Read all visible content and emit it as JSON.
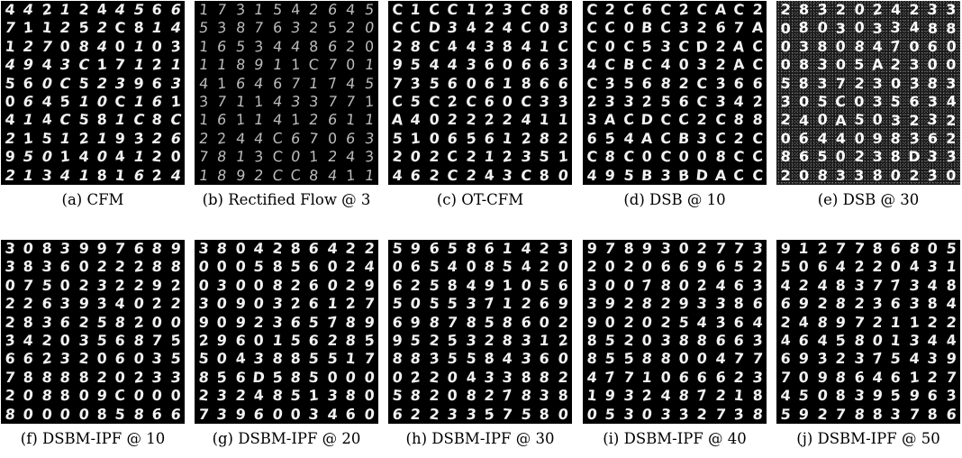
{
  "panels": [
    {
      "caption": "(a) CFM",
      "noisy": false,
      "digits": [
        "4",
        "4",
        "2",
        "1",
        "2",
        "4",
        "4",
        "5",
        "6",
        "6",
        "7",
        "1",
        "1",
        "2",
        "5",
        "2",
        "C",
        "8",
        "1",
        "4",
        "1",
        "2",
        "7",
        "0",
        "8",
        "4",
        "0",
        "1",
        "0",
        "3",
        "4",
        "9",
        "4",
        "3",
        "C",
        "1",
        "7",
        "1",
        "2",
        "1",
        "5",
        "6",
        "0",
        "C",
        "5",
        "2",
        "3",
        "9",
        "6",
        "3",
        "0",
        "6",
        "4",
        "5",
        "1",
        "0",
        "C",
        "1",
        "6",
        "1",
        "4",
        "1",
        "4",
        "C",
        "5",
        "8",
        "1",
        "C",
        "8",
        "C",
        "2",
        "1",
        "5",
        "1",
        "2",
        "1",
        "9",
        "3",
        "2",
        "6",
        "9",
        "5",
        "0",
        "1",
        "4",
        "0",
        "4",
        "1",
        "2",
        "0",
        "2",
        "1",
        "3",
        "4",
        "1",
        "8",
        "1",
        "6",
        "2",
        "4"
      ]
    },
    {
      "caption": "(b) Rectified Flow @ 3",
      "noisy": false,
      "digits": [
        "1",
        "7",
        "3",
        "1",
        "5",
        "4",
        "2",
        "6",
        "4",
        "5",
        "5",
        "3",
        "8",
        "7",
        "6",
        "3",
        "2",
        "5",
        "2",
        "0",
        "1",
        "6",
        "5",
        "3",
        "4",
        "4",
        "8",
        "6",
        "2",
        "0",
        "1",
        "1",
        "8",
        "9",
        "1",
        "1",
        "C",
        "7",
        "0",
        "1",
        "4",
        "1",
        "6",
        "4",
        "6",
        "7",
        "1",
        "7",
        "4",
        "5",
        "3",
        "7",
        "1",
        "1",
        "4",
        "3",
        "3",
        "7",
        "7",
        "1",
        "1",
        "6",
        "1",
        "1",
        "4",
        "1",
        "2",
        "6",
        "1",
        "1",
        "2",
        "2",
        "4",
        "4",
        "C",
        "6",
        "7",
        "0",
        "6",
        "3",
        "7",
        "8",
        "1",
        "3",
        "C",
        "0",
        "1",
        "2",
        "4",
        "3",
        "1",
        "8",
        "9",
        "2",
        "C",
        "C",
        "8",
        "4",
        "1",
        "1"
      ]
    },
    {
      "caption": "(c) OT-CFM",
      "noisy": false,
      "digits": [
        "C",
        "1",
        "C",
        "C",
        "1",
        "2",
        "3",
        "C",
        "8",
        "8",
        "C",
        "C",
        "D",
        "3",
        "4",
        "2",
        "4",
        "C",
        "0",
        "3",
        "2",
        "8",
        "C",
        "4",
        "4",
        "3",
        "8",
        "4",
        "1",
        "C",
        "9",
        "5",
        "4",
        "4",
        "3",
        "6",
        "0",
        "6",
        "6",
        "3",
        "7",
        "3",
        "5",
        "6",
        "0",
        "6",
        "1",
        "8",
        "6",
        "6",
        "C",
        "5",
        "C",
        "2",
        "C",
        "6",
        "0",
        "C",
        "3",
        "3",
        "A",
        "4",
        "0",
        "2",
        "2",
        "2",
        "2",
        "4",
        "1",
        "1",
        "5",
        "1",
        "0",
        "6",
        "5",
        "6",
        "1",
        "2",
        "8",
        "2",
        "2",
        "0",
        "2",
        "C",
        "2",
        "1",
        "2",
        "3",
        "5",
        "1",
        "4",
        "6",
        "2",
        "C",
        "2",
        "4",
        "3",
        "C",
        "8",
        "0"
      ]
    },
    {
      "caption": "(d) DSB @ 10",
      "noisy": false,
      "digits": [
        "C",
        "2",
        "C",
        "6",
        "C",
        "2",
        "C",
        "A",
        "C",
        "2",
        "C",
        "C",
        "0",
        "B",
        "C",
        "3",
        "2",
        "6",
        "7",
        "A",
        "C",
        "0",
        "C",
        "5",
        "3",
        "C",
        "D",
        "2",
        "A",
        "C",
        "4",
        "C",
        "B",
        "C",
        "4",
        "0",
        "3",
        "2",
        "A",
        "C",
        "C",
        "3",
        "5",
        "6",
        "8",
        "2",
        "C",
        "3",
        "6",
        "6",
        "2",
        "3",
        "3",
        "2",
        "5",
        "6",
        "C",
        "3",
        "4",
        "2",
        "3",
        "A",
        "C",
        "D",
        "C",
        "C",
        "2",
        "C",
        "8",
        "8",
        "6",
        "5",
        "4",
        "A",
        "C",
        "B",
        "3",
        "C",
        "2",
        "C",
        "C",
        "8",
        "C",
        "0",
        "C",
        "0",
        "0",
        "8",
        "C",
        "C",
        "4",
        "9",
        "5",
        "B",
        "3",
        "B",
        "D",
        "A",
        "C",
        "C"
      ]
    },
    {
      "caption": "(e) DSB @ 30",
      "noisy": true,
      "digits": [
        "2",
        "8",
        "3",
        "2",
        "0",
        "2",
        "4",
        "2",
        "3",
        "3",
        "0",
        "8",
        "0",
        "3",
        "0",
        "3",
        "3",
        "4",
        "8",
        "8",
        "0",
        "3",
        "8",
        "0",
        "8",
        "4",
        "7",
        "0",
        "6",
        "0",
        "0",
        "8",
        "3",
        "0",
        "5",
        "A",
        "2",
        "3",
        "0",
        "0",
        "5",
        "8",
        "3",
        "7",
        "2",
        "3",
        "0",
        "3",
        "8",
        "3",
        "3",
        "0",
        "5",
        "C",
        "0",
        "3",
        "5",
        "6",
        "3",
        "4",
        "2",
        "4",
        "0",
        "A",
        "5",
        "0",
        "3",
        "2",
        "3",
        "2",
        "0",
        "6",
        "4",
        "4",
        "0",
        "9",
        "8",
        "3",
        "6",
        "2",
        "8",
        "6",
        "5",
        "0",
        "2",
        "3",
        "8",
        "D",
        "3",
        "3",
        "2",
        "0",
        "8",
        "3",
        "3",
        "8",
        "0",
        "2",
        "3",
        "0"
      ]
    },
    {
      "caption": "(f) DSBM-IPF @ 10",
      "noisy": false,
      "digits": [
        "3",
        "0",
        "8",
        "3",
        "9",
        "9",
        "7",
        "6",
        "8",
        "9",
        "3",
        "8",
        "3",
        "6",
        "0",
        "2",
        "2",
        "2",
        "8",
        "8",
        "0",
        "7",
        "5",
        "0",
        "2",
        "3",
        "2",
        "2",
        "9",
        "2",
        "2",
        "2",
        "6",
        "3",
        "9",
        "3",
        "4",
        "0",
        "2",
        "2",
        "2",
        "8",
        "3",
        "6",
        "2",
        "5",
        "8",
        "2",
        "0",
        "0",
        "3",
        "4",
        "2",
        "0",
        "3",
        "5",
        "6",
        "8",
        "7",
        "5",
        "6",
        "6",
        "2",
        "3",
        "2",
        "0",
        "6",
        "0",
        "3",
        "5",
        "7",
        "8",
        "8",
        "8",
        "8",
        "2",
        "0",
        "2",
        "3",
        "3",
        "2",
        "0",
        "8",
        "8",
        "0",
        "9",
        "C",
        "0",
        "0",
        "0",
        "8",
        "0",
        "0",
        "0",
        "0",
        "8",
        "5",
        "8",
        "6",
        "6"
      ]
    },
    {
      "caption": "(g) DSBM-IPF @ 20",
      "noisy": false,
      "digits": [
        "3",
        "8",
        "0",
        "4",
        "2",
        "8",
        "6",
        "4",
        "2",
        "2",
        "0",
        "0",
        "0",
        "5",
        "8",
        "5",
        "6",
        "0",
        "2",
        "4",
        "0",
        "3",
        "0",
        "0",
        "8",
        "2",
        "6",
        "0",
        "2",
        "9",
        "3",
        "0",
        "9",
        "0",
        "3",
        "2",
        "6",
        "1",
        "2",
        "7",
        "9",
        "0",
        "9",
        "2",
        "3",
        "6",
        "5",
        "7",
        "8",
        "9",
        "2",
        "9",
        "6",
        "0",
        "1",
        "5",
        "6",
        "2",
        "8",
        "5",
        "5",
        "0",
        "4",
        "3",
        "8",
        "8",
        "5",
        "5",
        "1",
        "7",
        "8",
        "5",
        "6",
        "D",
        "5",
        "8",
        "5",
        "0",
        "0",
        "0",
        "2",
        "3",
        "2",
        "4",
        "8",
        "5",
        "1",
        "3",
        "8",
        "0",
        "7",
        "3",
        "9",
        "6",
        "0",
        "0",
        "3",
        "4",
        "6",
        "0"
      ]
    },
    {
      "caption": "(h) DSBM-IPF @ 30",
      "noisy": false,
      "digits": [
        "5",
        "9",
        "6",
        "5",
        "8",
        "6",
        "1",
        "4",
        "2",
        "3",
        "0",
        "6",
        "5",
        "4",
        "0",
        "8",
        "5",
        "4",
        "2",
        "0",
        "6",
        "2",
        "5",
        "8",
        "4",
        "9",
        "1",
        "0",
        "5",
        "6",
        "5",
        "0",
        "5",
        "5",
        "3",
        "7",
        "1",
        "2",
        "6",
        "9",
        "6",
        "9",
        "8",
        "7",
        "8",
        "5",
        "8",
        "6",
        "0",
        "2",
        "9",
        "5",
        "2",
        "5",
        "3",
        "2",
        "8",
        "3",
        "1",
        "2",
        "8",
        "8",
        "3",
        "5",
        "5",
        "8",
        "4",
        "3",
        "6",
        "0",
        "0",
        "2",
        "2",
        "0",
        "4",
        "3",
        "3",
        "8",
        "8",
        "2",
        "5",
        "8",
        "2",
        "0",
        "8",
        "2",
        "7",
        "8",
        "3",
        "8",
        "6",
        "2",
        "2",
        "3",
        "3",
        "5",
        "7",
        "5",
        "8",
        "0"
      ]
    },
    {
      "caption": "(i) DSBM-IPF @ 40",
      "noisy": false,
      "digits": [
        "9",
        "7",
        "8",
        "9",
        "3",
        "0",
        "2",
        "7",
        "7",
        "3",
        "2",
        "0",
        "2",
        "0",
        "6",
        "6",
        "9",
        "6",
        "5",
        "2",
        "3",
        "0",
        "0",
        "7",
        "8",
        "0",
        "2",
        "4",
        "6",
        "3",
        "3",
        "9",
        "2",
        "8",
        "2",
        "9",
        "3",
        "3",
        "8",
        "6",
        "9",
        "0",
        "2",
        "0",
        "2",
        "5",
        "4",
        "3",
        "6",
        "4",
        "8",
        "5",
        "2",
        "0",
        "3",
        "8",
        "8",
        "6",
        "6",
        "3",
        "8",
        "5",
        "5",
        "8",
        "8",
        "0",
        "0",
        "4",
        "7",
        "7",
        "4",
        "7",
        "7",
        "1",
        "0",
        "6",
        "6",
        "6",
        "2",
        "3",
        "1",
        "9",
        "3",
        "2",
        "4",
        "8",
        "7",
        "2",
        "1",
        "8",
        "0",
        "5",
        "3",
        "0",
        "3",
        "3",
        "2",
        "7",
        "3",
        "8"
      ]
    },
    {
      "caption": "(j) DSBM-IPF @ 50",
      "noisy": false,
      "digits": [
        "9",
        "1",
        "2",
        "7",
        "7",
        "8",
        "6",
        "8",
        "0",
        "5",
        "5",
        "0",
        "6",
        "4",
        "2",
        "2",
        "0",
        "4",
        "3",
        "1",
        "4",
        "2",
        "4",
        "8",
        "3",
        "7",
        "7",
        "3",
        "4",
        "8",
        "6",
        "9",
        "2",
        "8",
        "2",
        "3",
        "6",
        "3",
        "8",
        "4",
        "2",
        "4",
        "8",
        "9",
        "7",
        "2",
        "1",
        "1",
        "2",
        "2",
        "4",
        "6",
        "4",
        "5",
        "8",
        "0",
        "1",
        "3",
        "4",
        "4",
        "6",
        "9",
        "3",
        "2",
        "3",
        "7",
        "5",
        "4",
        "3",
        "9",
        "7",
        "0",
        "9",
        "8",
        "6",
        "4",
        "6",
        "1",
        "2",
        "7",
        "4",
        "5",
        "0",
        "8",
        "3",
        "9",
        "5",
        "9",
        "6",
        "3",
        "5",
        "9",
        "2",
        "7",
        "8",
        "8",
        "3",
        "7",
        "8",
        "6"
      ]
    }
  ]
}
